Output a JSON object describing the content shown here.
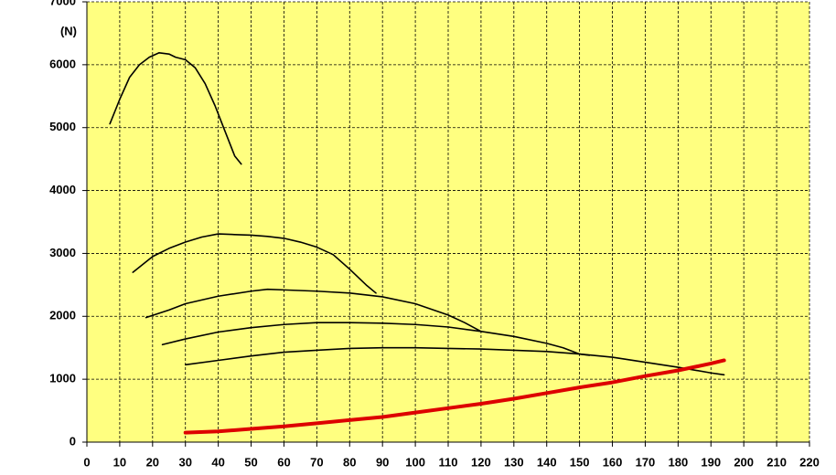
{
  "chart_data": {
    "type": "line",
    "y_label": "(N)",
    "xlim": [
      0,
      220
    ],
    "ylim": [
      0,
      7000
    ],
    "xticks": [
      0,
      10,
      20,
      30,
      40,
      50,
      60,
      70,
      80,
      90,
      100,
      110,
      120,
      130,
      140,
      150,
      160,
      170,
      180,
      190,
      200,
      210,
      220
    ],
    "yticks": [
      0,
      1000,
      2000,
      3000,
      4000,
      5000,
      6000,
      7000
    ],
    "grid": true,
    "background": "#ffff80",
    "series": [
      {
        "color": "#000000",
        "width": 1.6,
        "x": [
          7,
          10,
          13,
          16,
          19,
          22,
          25,
          27,
          30,
          33,
          36,
          39,
          42,
          45,
          47
        ],
        "values": [
          5060,
          5450,
          5800,
          6000,
          6120,
          6190,
          6170,
          6120,
          6080,
          5950,
          5700,
          5350,
          4950,
          4550,
          4420
        ]
      },
      {
        "color": "#000000",
        "width": 1.6,
        "x": [
          14,
          20,
          25,
          30,
          35,
          40,
          45,
          50,
          55,
          60,
          65,
          70,
          75,
          80,
          85,
          88
        ],
        "values": [
          2700,
          2950,
          3080,
          3180,
          3260,
          3310,
          3300,
          3290,
          3270,
          3240,
          3180,
          3100,
          2980,
          2750,
          2500,
          2370
        ]
      },
      {
        "color": "#000000",
        "width": 1.6,
        "x": [
          18,
          25,
          30,
          40,
          50,
          55,
          60,
          70,
          80,
          90,
          100,
          110,
          115,
          120
        ],
        "values": [
          1980,
          2100,
          2200,
          2320,
          2400,
          2430,
          2420,
          2400,
          2370,
          2310,
          2200,
          2020,
          1900,
          1760
        ]
      },
      {
        "color": "#000000",
        "width": 1.6,
        "x": [
          23,
          30,
          40,
          50,
          60,
          70,
          80,
          90,
          100,
          110,
          120,
          130,
          140,
          145,
          150,
          153
        ],
        "values": [
          1550,
          1640,
          1750,
          1820,
          1870,
          1900,
          1900,
          1890,
          1870,
          1830,
          1760,
          1680,
          1570,
          1500,
          1400,
          1380
        ]
      },
      {
        "color": "#000000",
        "width": 1.6,
        "x": [
          30,
          40,
          50,
          60,
          70,
          80,
          90,
          100,
          110,
          120,
          130,
          140,
          150,
          160,
          170,
          180,
          190,
          194
        ],
        "values": [
          1230,
          1300,
          1370,
          1430,
          1460,
          1490,
          1500,
          1500,
          1490,
          1480,
          1460,
          1440,
          1400,
          1350,
          1270,
          1190,
          1100,
          1070
        ]
      },
      {
        "color": "#dd0000",
        "width": 4,
        "x": [
          30,
          40,
          50,
          60,
          70,
          80,
          90,
          100,
          110,
          120,
          130,
          140,
          150,
          160,
          170,
          180,
          190,
          194
        ],
        "values": [
          150,
          170,
          210,
          250,
          300,
          350,
          400,
          470,
          540,
          610,
          690,
          780,
          870,
          950,
          1050,
          1140,
          1250,
          1300
        ]
      }
    ]
  }
}
